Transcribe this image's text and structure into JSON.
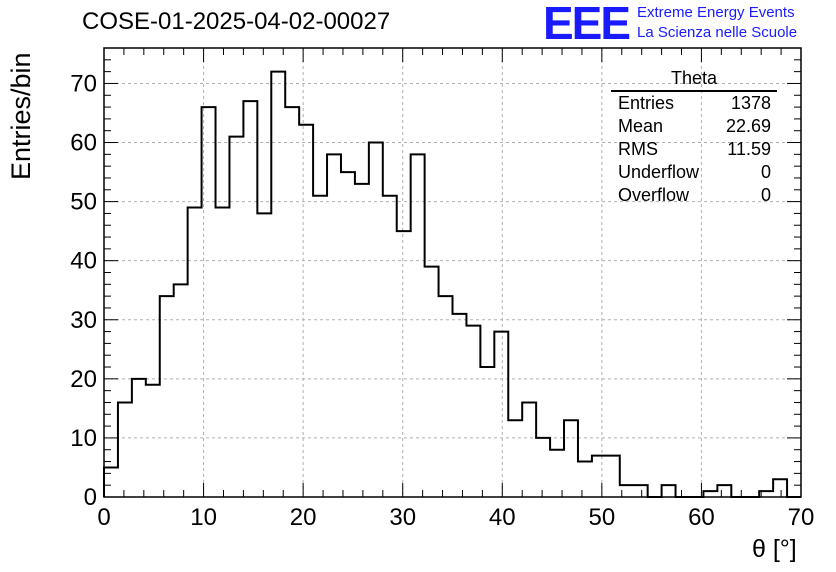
{
  "header": {
    "run_title": "COSE-01-2025-04-02-00027",
    "logo_text": "EEE",
    "logo_line1": "Extreme Energy Events",
    "logo_line2": "La Scienza nelle Scuole"
  },
  "stats": {
    "title": "Theta",
    "rows": [
      {
        "label": "Entries",
        "value": "1378"
      },
      {
        "label": "Mean",
        "value": "22.69"
      },
      {
        "label": "RMS",
        "value": "11.59"
      },
      {
        "label": "Underflow",
        "value": "0"
      },
      {
        "label": "Overflow",
        "value": "0"
      }
    ]
  },
  "chart_data": {
    "type": "bar",
    "style": "step-histogram",
    "title": "COSE-01-2025-04-02-00027",
    "xlabel": "θ [°]",
    "ylabel": "Entries/bin",
    "xlim": [
      0,
      70
    ],
    "ylim": [
      0,
      76
    ],
    "grid": true,
    "bin_width": 1.4,
    "x_ticks": [
      0,
      10,
      20,
      30,
      40,
      50,
      60,
      70
    ],
    "y_ticks": [
      0,
      10,
      20,
      30,
      40,
      50,
      60,
      70
    ],
    "values": [
      5,
      16,
      20,
      19,
      34,
      36,
      49,
      66,
      49,
      61,
      67,
      48,
      72,
      66,
      63,
      51,
      58,
      55,
      53,
      60,
      51,
      45,
      58,
      39,
      34,
      31,
      29,
      22,
      28,
      13,
      16,
      10,
      8,
      13,
      6,
      7,
      7,
      2,
      2,
      0,
      2,
      0,
      0,
      1,
      2,
      0,
      0,
      1,
      3,
      0
    ],
    "colors": {
      "line": "#000000",
      "grid": "#b0b0b0",
      "logo": "#1a1aff"
    }
  }
}
